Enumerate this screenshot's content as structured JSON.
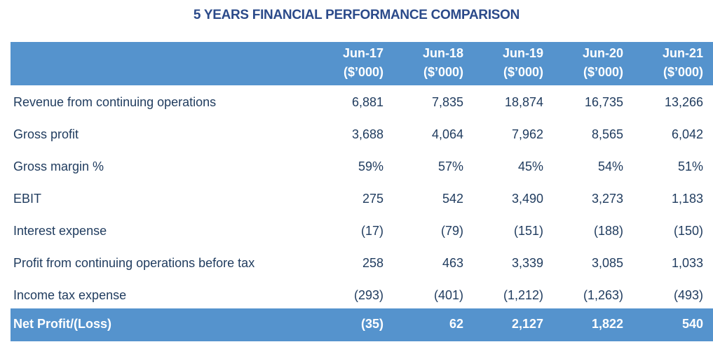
{
  "title": "5 YEARS FINANCIAL PERFORMANCE COMPARISON",
  "columns": [
    {
      "period": "Jun-17",
      "unit": "($’000)"
    },
    {
      "period": "Jun-18",
      "unit": "($’000)"
    },
    {
      "period": "Jun-19",
      "unit": "($’000)"
    },
    {
      "period": "Jun-20",
      "unit": "($’000)"
    },
    {
      "period": "Jun-21",
      "unit": "($’000)"
    }
  ],
  "rows": [
    {
      "label": "Revenue from continuing operations",
      "values": [
        "6,881",
        "7,835",
        "18,874",
        "16,735",
        "13,266"
      ]
    },
    {
      "label": "Gross profit",
      "values": [
        "3,688",
        "4,064",
        "7,962",
        "8,565",
        "6,042"
      ]
    },
    {
      "label": "Gross margin %",
      "values": [
        "59%",
        "57%",
        "45%",
        "54%",
        "51%"
      ]
    },
    {
      "label": "EBIT",
      "values": [
        "275",
        "542",
        "3,490",
        "3,273",
        "1,183"
      ]
    },
    {
      "label": "Interest expense",
      "values": [
        "(17)",
        "(79)",
        "(151)",
        "(188)",
        "(150)"
      ]
    },
    {
      "label": "Profit from continuing operations before tax",
      "values": [
        "258",
        "463",
        "3,339",
        "3,085",
        "1,033"
      ]
    },
    {
      "label": "Income tax expense",
      "values": [
        "(293)",
        "(401)",
        "(1,212)",
        "(1,263)",
        "(493)"
      ]
    }
  ],
  "total": {
    "label": "Net Profit/(Loss)",
    "values": [
      "(35)",
      "62",
      "2,127",
      "1,822",
      "540"
    ]
  },
  "colors": {
    "header_band": "#5593CD",
    "title": "#2B4A8A",
    "text": "#1F3B5E"
  }
}
